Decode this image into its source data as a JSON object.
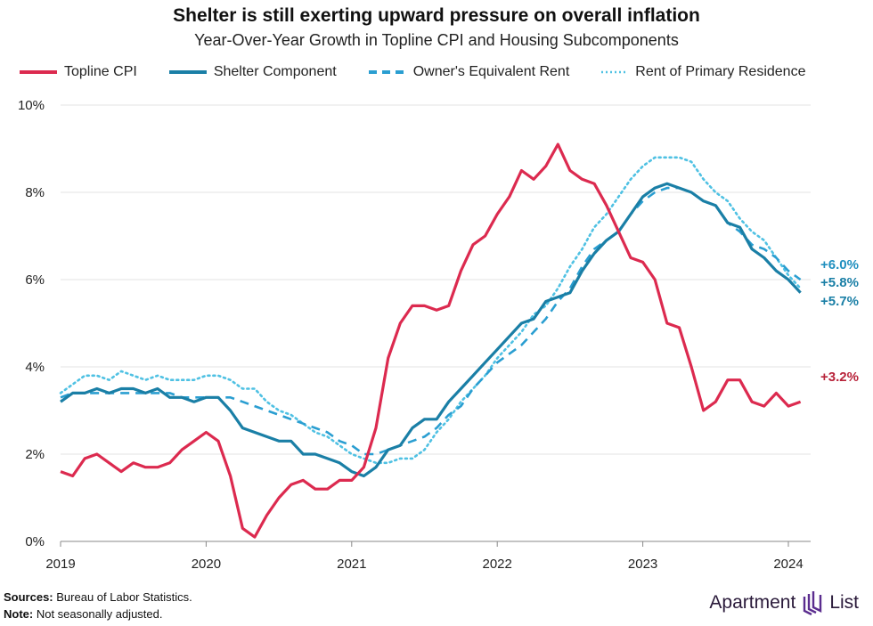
{
  "title": "Shelter is still exerting upward pressure on overall inflation",
  "subtitle": "Year-Over-Year Growth in Topline CPI and Housing Subcomponents",
  "footer": {
    "sources_label": "Sources:",
    "sources": "Bureau of Labor Statistics.",
    "note_label": "Note:",
    "note": "Not seasonally adjusted."
  },
  "logo": {
    "text1": "Apartment",
    "text2": "List"
  },
  "chart_data": {
    "type": "line",
    "title": "Shelter is still exerting upward pressure on overall inflation",
    "subtitle": "Year-Over-Year Growth in Topline CPI and Housing Subcomponents",
    "x_start": "2019-01",
    "x_end": "2024-02",
    "frequency": "monthly",
    "x_ticks": [
      "2019",
      "2020",
      "2021",
      "2022",
      "2023",
      "2024"
    ],
    "y_ticks": [
      "0%",
      "2%",
      "4%",
      "6%",
      "8%",
      "10%"
    ],
    "ylim": [
      0,
      10
    ],
    "grid": true,
    "legend": "top",
    "series": [
      {
        "name": "Topline CPI",
        "color": "#dc2a4f",
        "style": "solid",
        "end_label": "+3.2%",
        "label_color": "#b8233a",
        "values": [
          1.6,
          1.5,
          1.9,
          2.0,
          1.8,
          1.6,
          1.8,
          1.7,
          1.7,
          1.8,
          2.1,
          2.3,
          2.5,
          2.3,
          1.5,
          0.3,
          0.1,
          0.6,
          1.0,
          1.3,
          1.4,
          1.2,
          1.2,
          1.4,
          1.4,
          1.7,
          2.6,
          4.2,
          5.0,
          5.4,
          5.4,
          5.3,
          5.4,
          6.2,
          6.8,
          7.0,
          7.5,
          7.9,
          8.5,
          8.3,
          8.6,
          9.1,
          8.5,
          8.3,
          8.2,
          7.7,
          7.1,
          6.5,
          6.4,
          6.0,
          5.0,
          4.9,
          4.0,
          3.0,
          3.2,
          3.7,
          3.7,
          3.2,
          3.1,
          3.4,
          3.1,
          3.2
        ]
      },
      {
        "name": "Shelter Component",
        "color": "#1a7fa6",
        "style": "solid",
        "end_label": "+5.7%",
        "label_color": "#1a7fa6",
        "values": [
          3.2,
          3.4,
          3.4,
          3.5,
          3.4,
          3.5,
          3.5,
          3.4,
          3.5,
          3.3,
          3.3,
          3.2,
          3.3,
          3.3,
          3.0,
          2.6,
          2.5,
          2.4,
          2.3,
          2.3,
          2.0,
          2.0,
          1.9,
          1.8,
          1.6,
          1.5,
          1.7,
          2.1,
          2.2,
          2.6,
          2.8,
          2.8,
          3.2,
          3.5,
          3.8,
          4.1,
          4.4,
          4.7,
          5.0,
          5.1,
          5.5,
          5.6,
          5.7,
          6.2,
          6.6,
          6.9,
          7.1,
          7.5,
          7.9,
          8.1,
          8.2,
          8.1,
          8.0,
          7.8,
          7.7,
          7.3,
          7.2,
          6.7,
          6.5,
          6.2,
          6.0,
          5.7
        ]
      },
      {
        "name": "Owner's Equivalent Rent",
        "color": "#2a9ed1",
        "style": "dashed",
        "end_label": "+6.0%",
        "label_color": "#1f8fbf",
        "values": [
          3.3,
          3.4,
          3.4,
          3.4,
          3.4,
          3.4,
          3.4,
          3.4,
          3.4,
          3.4,
          3.3,
          3.3,
          3.3,
          3.3,
          3.3,
          3.2,
          3.1,
          3.0,
          2.9,
          2.8,
          2.7,
          2.6,
          2.5,
          2.3,
          2.2,
          2.0,
          2.0,
          2.1,
          2.2,
          2.3,
          2.4,
          2.6,
          2.9,
          3.1,
          3.5,
          3.8,
          4.1,
          4.3,
          4.5,
          4.8,
          5.1,
          5.5,
          5.8,
          6.3,
          6.7,
          6.9,
          7.1,
          7.5,
          7.8,
          8.0,
          8.1,
          8.1,
          8.0,
          7.8,
          7.7,
          7.3,
          7.1,
          6.8,
          6.7,
          6.5,
          6.2,
          6.0
        ]
      },
      {
        "name": "Rent of Primary Residence",
        "color": "#4fc1e3",
        "style": "dotted",
        "end_label": "+5.8%",
        "label_color": "#1a7fa6",
        "values": [
          3.4,
          3.6,
          3.8,
          3.8,
          3.7,
          3.9,
          3.8,
          3.7,
          3.8,
          3.7,
          3.7,
          3.7,
          3.8,
          3.8,
          3.7,
          3.5,
          3.5,
          3.2,
          3.0,
          2.9,
          2.7,
          2.5,
          2.4,
          2.2,
          2.0,
          1.9,
          1.8,
          1.8,
          1.9,
          1.9,
          2.1,
          2.5,
          2.8,
          3.2,
          3.5,
          3.8,
          4.2,
          4.5,
          4.8,
          5.2,
          5.4,
          5.8,
          6.3,
          6.7,
          7.2,
          7.5,
          7.9,
          8.3,
          8.6,
          8.8,
          8.8,
          8.8,
          8.7,
          8.3,
          8.0,
          7.8,
          7.4,
          7.1,
          6.9,
          6.5,
          6.1,
          5.8
        ]
      }
    ]
  }
}
